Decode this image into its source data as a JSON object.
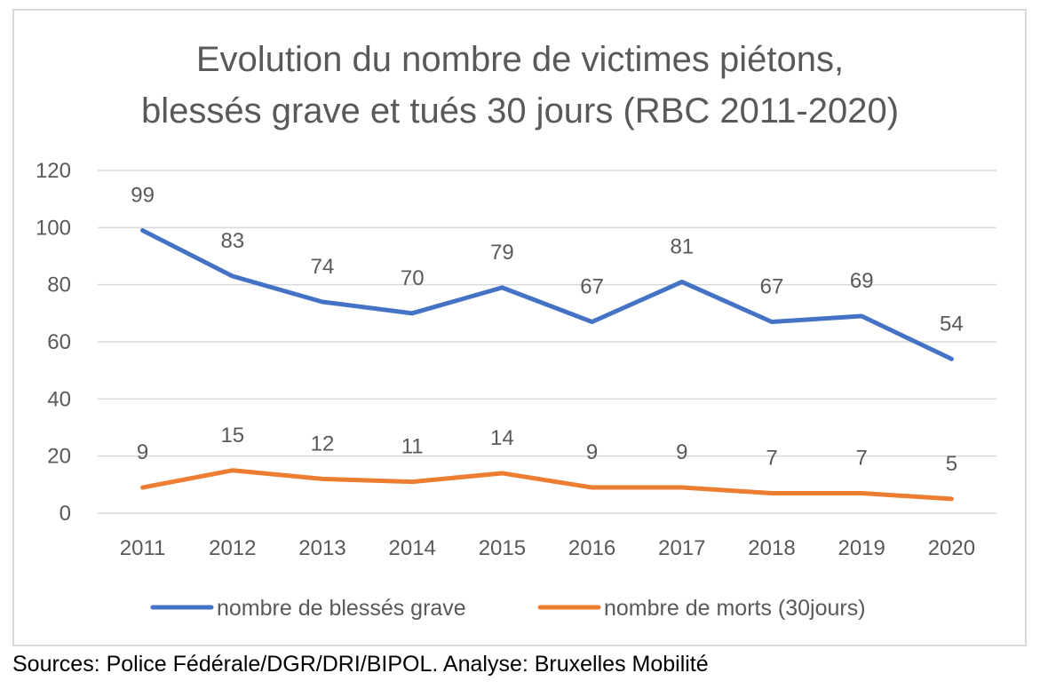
{
  "chart_data": {
    "type": "line",
    "title": "Evolution du nombre de victimes piétons,\nblessés grave et tués 30 jours (RBC 2011-2020)",
    "categories": [
      "2011",
      "2012",
      "2013",
      "2014",
      "2015",
      "2016",
      "2017",
      "2018",
      "2019",
      "2020"
    ],
    "series": [
      {
        "name": "nombre de blessés grave",
        "color": "#4472C4",
        "values": [
          99,
          83,
          74,
          70,
          79,
          67,
          81,
          67,
          69,
          54
        ]
      },
      {
        "name": "nombre de morts (30jours)",
        "color": "#ED7D31",
        "values": [
          9,
          15,
          12,
          11,
          14,
          9,
          9,
          7,
          7,
          5
        ]
      }
    ],
    "ylim": [
      0,
      120
    ],
    "yticks": [
      0,
      20,
      40,
      60,
      80,
      100,
      120
    ],
    "grid": true,
    "legend": "bottom",
    "data_labels": true,
    "xlabel": "",
    "ylabel": ""
  },
  "footer": {
    "source": "Sources: Police Fédérale/DGR/DRI/BIPOL. Analyse: Bruxelles Mobilité"
  },
  "colors": {
    "grid": "#D9D9D9",
    "text": "#595959",
    "frame": "#D9D9D9"
  }
}
